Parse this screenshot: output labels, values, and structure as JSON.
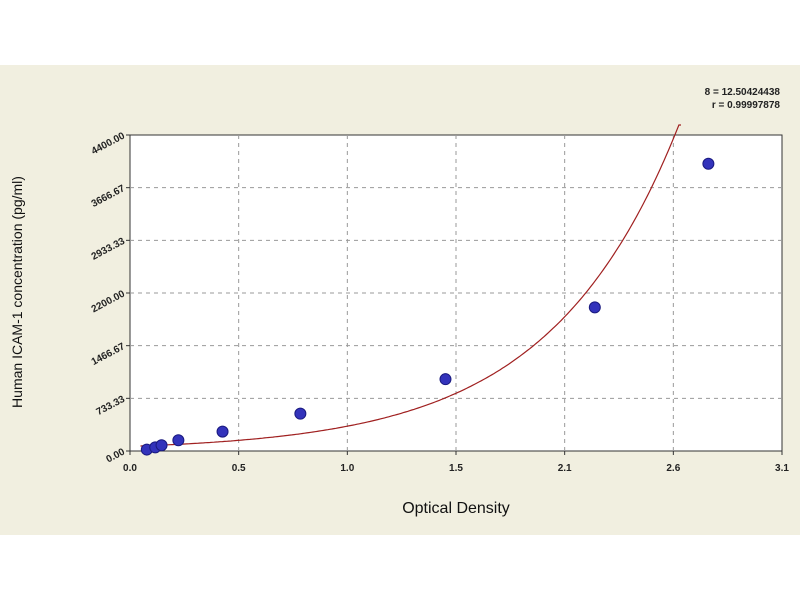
{
  "chart_data": {
    "type": "scatter",
    "xlabel": "Optical Density",
    "ylabel": "Human  ICAM-1 concentration (pg/ml)",
    "x_ticks": [
      "0.0",
      "0.5",
      "1.0",
      "1.5",
      "2.1",
      "2.6",
      "3.1"
    ],
    "y_ticks": [
      "0.00",
      "733.33",
      "1466.67",
      "2200.00",
      "2933.33",
      "3666.67",
      "4400.00"
    ],
    "xlim": [
      0,
      3.1
    ],
    "ylim": [
      0,
      4400
    ],
    "grid": true,
    "series": [
      {
        "points": [
          {
            "x": 0.08,
            "y": 20
          },
          {
            "x": 0.12,
            "y": 50
          },
          {
            "x": 0.15,
            "y": 80
          },
          {
            "x": 0.23,
            "y": 150
          },
          {
            "x": 0.44,
            "y": 270
          },
          {
            "x": 0.81,
            "y": 520
          },
          {
            "x": 1.5,
            "y": 1000
          },
          {
            "x": 2.21,
            "y": 2000
          },
          {
            "x": 2.75,
            "y": 4000
          }
        ],
        "color": "#3333bb"
      }
    ],
    "fit_color": "#a02020",
    "stats": [
      "8 = 12.50424438",
      "r = 0.99997878"
    ]
  }
}
